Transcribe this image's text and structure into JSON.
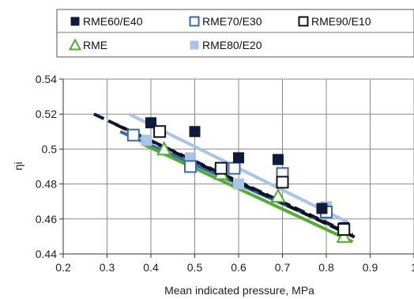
{
  "chart_data": {
    "type": "scatter",
    "title": "",
    "xlabel": "Mean indicated pressure, MPa",
    "ylabel": "ηi",
    "xlim": [
      0.2,
      1.0
    ],
    "ylim": [
      0.44,
      0.54
    ],
    "x_ticks": [
      0.2,
      0.3,
      0.4,
      0.5,
      0.6,
      0.7,
      0.8,
      0.9,
      1.0
    ],
    "x_tick_labels": [
      "0.2",
      "0.3",
      "0.4",
      "0.5",
      "0.6",
      "0.7",
      "0.8",
      "0.9",
      "1"
    ],
    "y_ticks": [
      0.44,
      0.46,
      0.48,
      0.5,
      0.52,
      0.54
    ],
    "y_tick_labels": [
      "0.44",
      "0.46",
      "0.48",
      "0.5",
      "0.52",
      "0.54"
    ],
    "grid": true,
    "legend_position": "top",
    "series": [
      {
        "name": "RME60/E40",
        "marker": "filled-square",
        "color": "#0d1b3d",
        "points": [
          [
            0.4,
            0.515
          ],
          [
            0.5,
            0.51
          ],
          [
            0.6,
            0.495
          ],
          [
            0.69,
            0.494
          ],
          [
            0.79,
            0.466
          ],
          [
            0.84,
            0.455
          ]
        ],
        "trend": [
          [
            0.27,
            0.52
          ],
          [
            0.86,
            0.451
          ]
        ],
        "trend_style": "dashed"
      },
      {
        "name": "RME70/E30",
        "marker": "open-square-blue",
        "color": "#3a66b8",
        "points": [
          [
            0.36,
            0.508
          ],
          [
            0.49,
            0.49
          ],
          [
            0.59,
            0.489
          ],
          [
            0.7,
            0.486
          ],
          [
            0.8,
            0.464
          ]
        ],
        "trend": [
          [
            0.33,
            0.51
          ],
          [
            0.85,
            0.452
          ]
        ],
        "trend_style": "solid"
      },
      {
        "name": "RME90/E10",
        "marker": "open-square-black",
        "color": "#111111",
        "points": [
          [
            0.42,
            0.51
          ],
          [
            0.56,
            0.489
          ],
          [
            0.7,
            0.481
          ],
          [
            0.84,
            0.454
          ]
        ],
        "trend": [
          [
            0.32,
            0.514
          ],
          [
            0.87,
            0.449
          ]
        ],
        "trend_style": "dashed"
      },
      {
        "name": "RME",
        "marker": "open-triangle",
        "color": "#4fae2e",
        "points": [
          [
            0.43,
            0.5
          ],
          [
            0.56,
            0.486
          ],
          [
            0.69,
            0.473
          ],
          [
            0.84,
            0.45
          ]
        ],
        "trend": [
          [
            0.38,
            0.503
          ],
          [
            0.86,
            0.447
          ]
        ],
        "trend_style": "solid"
      },
      {
        "name": "RME80/E20",
        "marker": "filled-square-light",
        "color": "#a8c4e6",
        "points": [
          [
            0.39,
            0.505
          ],
          [
            0.49,
            0.495
          ],
          [
            0.6,
            0.48
          ],
          [
            0.7,
            0.484
          ],
          [
            0.8,
            0.467
          ]
        ],
        "trend": [
          [
            0.35,
            0.52
          ],
          [
            0.85,
            0.458
          ]
        ],
        "trend_style": "solid"
      }
    ]
  }
}
